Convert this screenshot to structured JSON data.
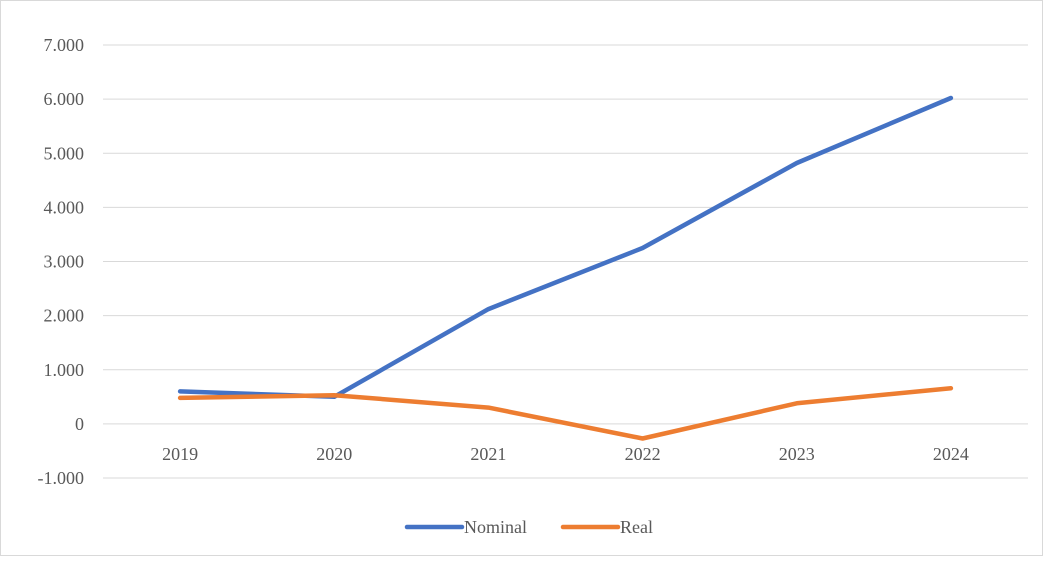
{
  "chart_data": {
    "type": "line",
    "categories": [
      "2019",
      "2020",
      "2021",
      "2022",
      "2023",
      "2024"
    ],
    "series": [
      {
        "name": "Nominal",
        "color": "#4472c4",
        "values": [
          600,
          500,
          2120,
          3250,
          4820,
          6020
        ]
      },
      {
        "name": "Real",
        "color": "#ed7d31",
        "values": [
          480,
          530,
          300,
          -270,
          380,
          660
        ]
      }
    ],
    "y_ticks": [
      {
        "value": 7000,
        "label": "7.000"
      },
      {
        "value": 6000,
        "label": "6.000"
      },
      {
        "value": 5000,
        "label": "5.000"
      },
      {
        "value": 4000,
        "label": "4.000"
      },
      {
        "value": 3000,
        "label": "3.000"
      },
      {
        "value": 2000,
        "label": "2.000"
      },
      {
        "value": 1000,
        "label": "1.000"
      },
      {
        "value": 0,
        "label": "0"
      },
      {
        "value": -1000,
        "label": "-1.000"
      }
    ],
    "ylim": [
      -1000,
      7000
    ],
    "grid": true,
    "legend_position": "bottom",
    "gridline_color": "#d9d9d9"
  }
}
